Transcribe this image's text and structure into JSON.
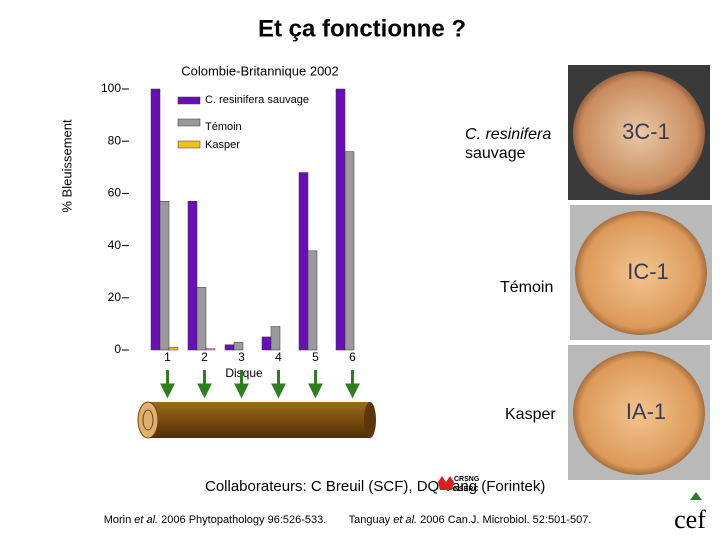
{
  "title": "Et ça fonctionne  ?",
  "chart_data": {
    "type": "bar",
    "title": "Colombie-Britannique 2002",
    "x_label": "Disque",
    "y_label": "% Bleuissement",
    "categories": [
      "1",
      "2",
      "3",
      "4",
      "5",
      "6"
    ],
    "series": [
      {
        "name": "C. resinifera sauvage",
        "color": "#6a0fb8",
        "values": [
          100,
          57,
          2,
          5,
          68,
          100
        ]
      },
      {
        "name": "Témoin",
        "color": "#9a9a9a",
        "values": [
          57,
          24,
          3,
          9,
          38,
          76
        ]
      },
      {
        "name": "Kasper",
        "color": "#f2c314",
        "values": [
          1,
          0.5,
          0,
          0,
          0,
          0
        ]
      }
    ],
    "ylim": [
      0,
      100
    ],
    "yticks": [
      0,
      20,
      40,
      60,
      80,
      100
    ]
  },
  "photos": [
    {
      "label_lines": [
        "C. resinifera",
        "sauvage"
      ],
      "marking": "3C-1"
    },
    {
      "label_lines": [
        "Témoin"
      ],
      "marking": "IC-1"
    },
    {
      "label_lines": [
        "Kasper"
      ],
      "marking": "IA-1"
    }
  ],
  "collaborators": "Collaborateurs:  C Breuil (SCF), DQ Yang (Forintek)",
  "references": [
    [
      "Morin ",
      "et al.",
      " 2006 Phytopathology 96:526-533."
    ],
    [
      "Tanguay ",
      "et al.",
      " 2006 Can.J. Microbiol. 52:501-507."
    ]
  ],
  "logos": {
    "crsng": "CRSNG",
    "nserc": "NSERC",
    "cef": "cef"
  }
}
